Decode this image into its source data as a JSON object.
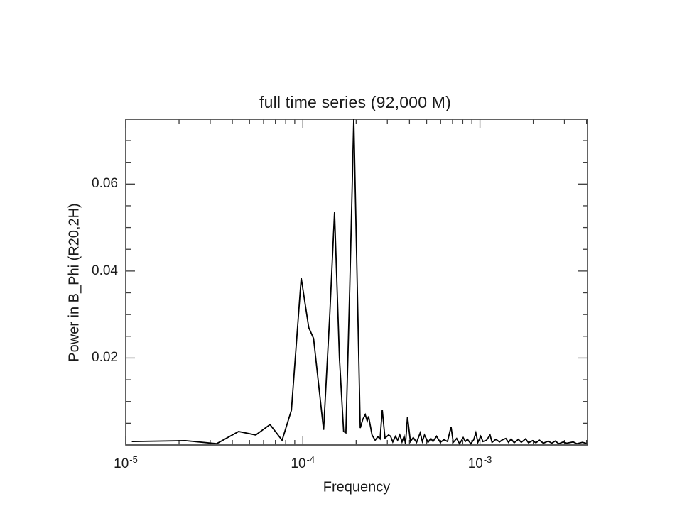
{
  "page": {
    "background": "#ffffff"
  },
  "chart_data": {
    "type": "line",
    "title": "full time series (92,000 M)",
    "xlabel": "Frequency",
    "ylabel": "Power in B_Phi (R20,2H)",
    "x_scale": "log",
    "y_scale": "linear",
    "x_range": [
      1e-05,
      0.00405
    ],
    "y_range": [
      0,
      0.0749
    ],
    "grid": false,
    "legend": null,
    "colors": {
      "curve": "#000000",
      "axis": "#3c3c3c",
      "text": "#1a1a1a"
    },
    "x_major_ticks": [
      {
        "value": 1e-05,
        "base": "10",
        "exp": "-5"
      },
      {
        "value": 0.0001,
        "base": "10",
        "exp": "-4"
      },
      {
        "value": 0.001,
        "base": "10",
        "exp": "-3"
      }
    ],
    "x_minor_ticks": [
      2e-05,
      3e-05,
      4e-05,
      5e-05,
      6e-05,
      7e-05,
      8e-05,
      9e-05,
      0.0002,
      0.0003,
      0.0004,
      0.0005,
      0.0006,
      0.0007,
      0.0008,
      0.0009,
      0.002,
      0.003,
      0.004
    ],
    "y_major_ticks": [
      {
        "value": 0.02,
        "label": "0.02"
      },
      {
        "value": 0.04,
        "label": "0.04"
      },
      {
        "value": 0.06,
        "label": "0.06"
      }
    ],
    "y_minor_ticks": [
      0.005,
      0.01,
      0.015,
      0.025,
      0.03,
      0.035,
      0.045,
      0.05,
      0.055,
      0.065,
      0.07
    ],
    "points": [
      [
        1.09e-05,
        0.0008
      ],
      [
        2.17e-05,
        0.001
      ],
      [
        3.26e-05,
        0.0003
      ],
      [
        4.34e-05,
        0.0031
      ],
      [
        5.42e-05,
        0.0023
      ],
      [
        6.53e-05,
        0.0047
      ],
      [
        7.64e-05,
        0.0011
      ],
      [
        8.62e-05,
        0.008
      ],
      [
        9.79e-05,
        0.0384
      ],
      [
        0.000108,
        0.027
      ],
      [
        0.000115,
        0.0245
      ],
      [
        0.000131,
        0.0035
      ],
      [
        0.000142,
        0.03
      ],
      [
        0.000151,
        0.0535
      ],
      [
        0.000161,
        0.02
      ],
      [
        0.00017,
        0.0031
      ],
      [
        0.000175,
        0.0028
      ],
      [
        0.000184,
        0.036
      ],
      [
        0.000194,
        0.0749
      ],
      [
        0.000211,
        0.0039
      ],
      [
        0.000218,
        0.0059
      ],
      [
        0.000225,
        0.007
      ],
      [
        0.000231,
        0.0055
      ],
      [
        0.000235,
        0.0066
      ],
      [
        0.000246,
        0.0023
      ],
      [
        0.000256,
        0.0011
      ],
      [
        0.000265,
        0.0019
      ],
      [
        0.000273,
        0.0014
      ],
      [
        0.000281,
        0.0081
      ],
      [
        0.000291,
        0.0016
      ],
      [
        0.000305,
        0.0023
      ],
      [
        0.000313,
        0.002
      ],
      [
        0.000322,
        0.0007
      ],
      [
        0.000334,
        0.002
      ],
      [
        0.000343,
        0.0011
      ],
      [
        0.000353,
        0.0023
      ],
      [
        0.000363,
        0.0007
      ],
      [
        0.000373,
        0.002
      ],
      [
        0.00038,
        0.0003
      ],
      [
        0.00039,
        0.0065
      ],
      [
        0.000405,
        0.0008
      ],
      [
        0.00042,
        0.0017
      ],
      [
        0.000439,
        0.0006
      ],
      [
        0.00046,
        0.0028
      ],
      [
        0.000473,
        0.0008
      ],
      [
        0.000486,
        0.0023
      ],
      [
        0.000509,
        0.0006
      ],
      [
        0.000528,
        0.0015
      ],
      [
        0.000543,
        0.0008
      ],
      [
        0.000569,
        0.002
      ],
      [
        0.000597,
        0.0006
      ],
      [
        0.000626,
        0.0012
      ],
      [
        0.000656,
        0.0008
      ],
      [
        0.000687,
        0.0042
      ],
      [
        0.000707,
        0.0006
      ],
      [
        0.000739,
        0.0015
      ],
      [
        0.000767,
        0.0003
      ],
      [
        0.000804,
        0.0017
      ],
      [
        0.000826,
        0.0008
      ],
      [
        0.00085,
        0.0013
      ],
      [
        0.000888,
        0.0003
      ],
      [
        0.000922,
        0.0012
      ],
      [
        0.000948,
        0.0028
      ],
      [
        0.000974,
        0.0006
      ],
      [
        0.00101,
        0.002
      ],
      [
        0.00104,
        0.0008
      ],
      [
        0.00109,
        0.0011
      ],
      [
        0.00114,
        0.0023
      ],
      [
        0.00117,
        0.0006
      ],
      [
        0.00123,
        0.0013
      ],
      [
        0.00129,
        0.0007
      ],
      [
        0.00134,
        0.0012
      ],
      [
        0.0014,
        0.0015
      ],
      [
        0.00145,
        0.0006
      ],
      [
        0.0015,
        0.0014
      ],
      [
        0.00156,
        0.0005
      ],
      [
        0.00165,
        0.0013
      ],
      [
        0.00171,
        0.0006
      ],
      [
        0.00181,
        0.0014
      ],
      [
        0.00188,
        0.0005
      ],
      [
        0.00198,
        0.001
      ],
      [
        0.00207,
        0.0005
      ],
      [
        0.00217,
        0.0011
      ],
      [
        0.00228,
        0.0004
      ],
      [
        0.00243,
        0.0009
      ],
      [
        0.00254,
        0.0004
      ],
      [
        0.00266,
        0.0009
      ],
      [
        0.00279,
        0.0003
      ],
      [
        0.00295,
        0.0007
      ],
      [
        0.00309,
        0.0004
      ],
      [
        0.00336,
        0.0007
      ],
      [
        0.00352,
        0.0003
      ],
      [
        0.00379,
        0.0006
      ],
      [
        0.00396,
        0.0004
      ]
    ]
  }
}
